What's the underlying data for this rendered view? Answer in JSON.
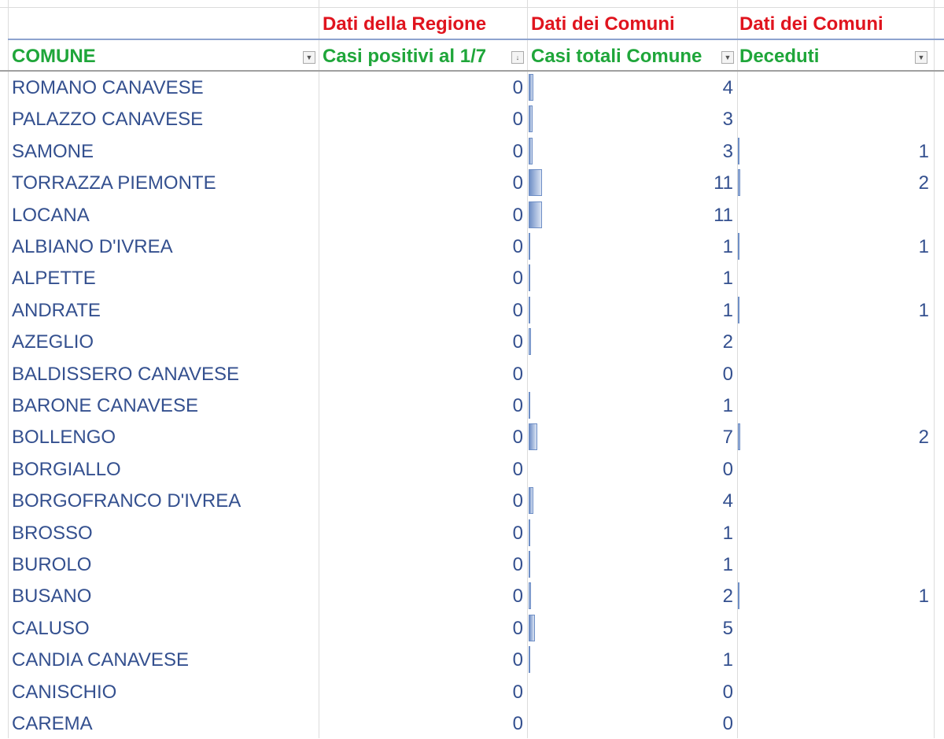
{
  "header_group": {
    "col_b": "Dati della Regione",
    "col_c": "Dati dei Comuni",
    "col_d": "Dati dei Comuni"
  },
  "columns": [
    {
      "label": "COMUNE",
      "filter": "dropdown"
    },
    {
      "label": "Casi positivi al 1/7",
      "filter": "sorted-descending"
    },
    {
      "label": "Casi totali Comune",
      "filter": "dropdown"
    },
    {
      "label": "Deceduti",
      "filter": "dropdown"
    }
  ],
  "colors": {
    "group_header": "#e0141e",
    "column_header": "#1fa63a",
    "band": "#dbe2f1",
    "text": "#34508f",
    "databar": "#6f8fc6"
  },
  "rows": [
    [
      "ROMANO CANAVESE",
      "0",
      "4",
      ""
    ],
    [
      "PALAZZO CANAVESE",
      "0",
      "3",
      ""
    ],
    [
      "SAMONE",
      "0",
      "3",
      "1"
    ],
    [
      "TORRAZZA PIEMONTE",
      "0",
      "11",
      "2"
    ],
    [
      "LOCANA",
      "0",
      "11",
      ""
    ],
    [
      "ALBIANO D'IVREA",
      "0",
      "1",
      "1"
    ],
    [
      "ALPETTE",
      "0",
      "1",
      ""
    ],
    [
      "ANDRATE",
      "0",
      "1",
      "1"
    ],
    [
      "AZEGLIO",
      "0",
      "2",
      ""
    ],
    [
      "BALDISSERO CANAVESE",
      "0",
      "0",
      ""
    ],
    [
      "BARONE CANAVESE",
      "0",
      "1",
      ""
    ],
    [
      "BOLLENGO",
      "0",
      "7",
      "2"
    ],
    [
      "BORGIALLO",
      "0",
      "0",
      ""
    ],
    [
      "BORGOFRANCO D'IVREA",
      "0",
      "4",
      ""
    ],
    [
      "BROSSO",
      "0",
      "1",
      ""
    ],
    [
      "BUROLO",
      "0",
      "1",
      ""
    ],
    [
      "BUSANO",
      "0",
      "2",
      "1"
    ],
    [
      "CALUSO",
      "0",
      "5",
      ""
    ],
    [
      "CANDIA CANAVESE",
      "0",
      "1",
      ""
    ],
    [
      "CANISCHIO",
      "0",
      "0",
      ""
    ],
    [
      "CAREMA",
      "0",
      "0",
      ""
    ]
  ]
}
